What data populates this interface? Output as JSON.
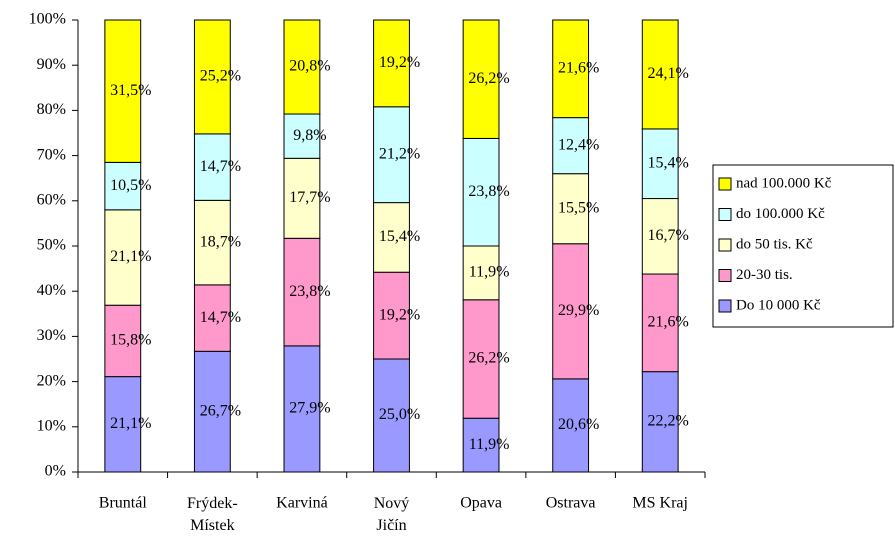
{
  "chart_data": {
    "type": "stacked_bar",
    "categories": [
      "Bruntál",
      "Frýdek-\nMístek",
      "Karviná",
      "Nový\nJičín",
      "Opava",
      "Ostrava",
      "MS Kraj"
    ],
    "series": [
      {
        "name": "Do 10 000 Kč",
        "color": "#9999ff",
        "values": [
          21.1,
          26.7,
          27.9,
          25.0,
          11.9,
          20.6,
          22.2
        ],
        "value_labels": [
          "21,1%",
          "26,7%",
          "27,9%",
          "25,0%",
          "11,9%",
          "20,6%",
          "22,2%"
        ]
      },
      {
        "name": "20-30 tis.",
        "color": "#ff99cc",
        "values": [
          15.8,
          14.7,
          23.8,
          19.2,
          26.2,
          29.9,
          21.6
        ],
        "value_labels": [
          "15,8%",
          "14,7%",
          "23,8%",
          "19,2%",
          "26,2%",
          "29,9%",
          "21,6%"
        ]
      },
      {
        "name": "do 50 tis. Kč",
        "color": "#ffffcc",
        "values": [
          21.1,
          18.7,
          17.7,
          15.4,
          11.9,
          15.5,
          16.7
        ],
        "value_labels": [
          "21,1%",
          "18,7%",
          "17,7%",
          "15,4%",
          "11,9%",
          "15,5%",
          "16,7%"
        ]
      },
      {
        "name": "do 100.000 Kč",
        "color": "#ccffff",
        "values": [
          10.5,
          14.7,
          9.8,
          21.2,
          23.8,
          12.4,
          15.4
        ],
        "value_labels": [
          "10,5%",
          "14,7%",
          "9,8%",
          "21,2%",
          "23,8%",
          "12,4%",
          "15,4%"
        ]
      },
      {
        "name": "nad 100.000 Kč",
        "color": "#ffff00",
        "values": [
          31.5,
          25.2,
          20.8,
          19.2,
          26.2,
          21.6,
          24.1
        ],
        "value_labels": [
          "31,5%",
          "25,2%",
          "20,8%",
          "19,2%",
          "26,2%",
          "21,6%",
          "24,1%"
        ]
      }
    ],
    "ylim": [
      0,
      100
    ],
    "yticks": [
      {
        "value": 0,
        "label": "0%"
      },
      {
        "value": 10,
        "label": "10%"
      },
      {
        "value": 20,
        "label": "20%"
      },
      {
        "value": 30,
        "label": "30%"
      },
      {
        "value": 40,
        "label": "40%"
      },
      {
        "value": 50,
        "label": "50%"
      },
      {
        "value": 60,
        "label": "60%"
      },
      {
        "value": 70,
        "label": "70%"
      },
      {
        "value": 80,
        "label": "80%"
      },
      {
        "value": 90,
        "label": "90%"
      },
      {
        "value": 100,
        "label": "100%"
      }
    ],
    "legend": "right"
  }
}
